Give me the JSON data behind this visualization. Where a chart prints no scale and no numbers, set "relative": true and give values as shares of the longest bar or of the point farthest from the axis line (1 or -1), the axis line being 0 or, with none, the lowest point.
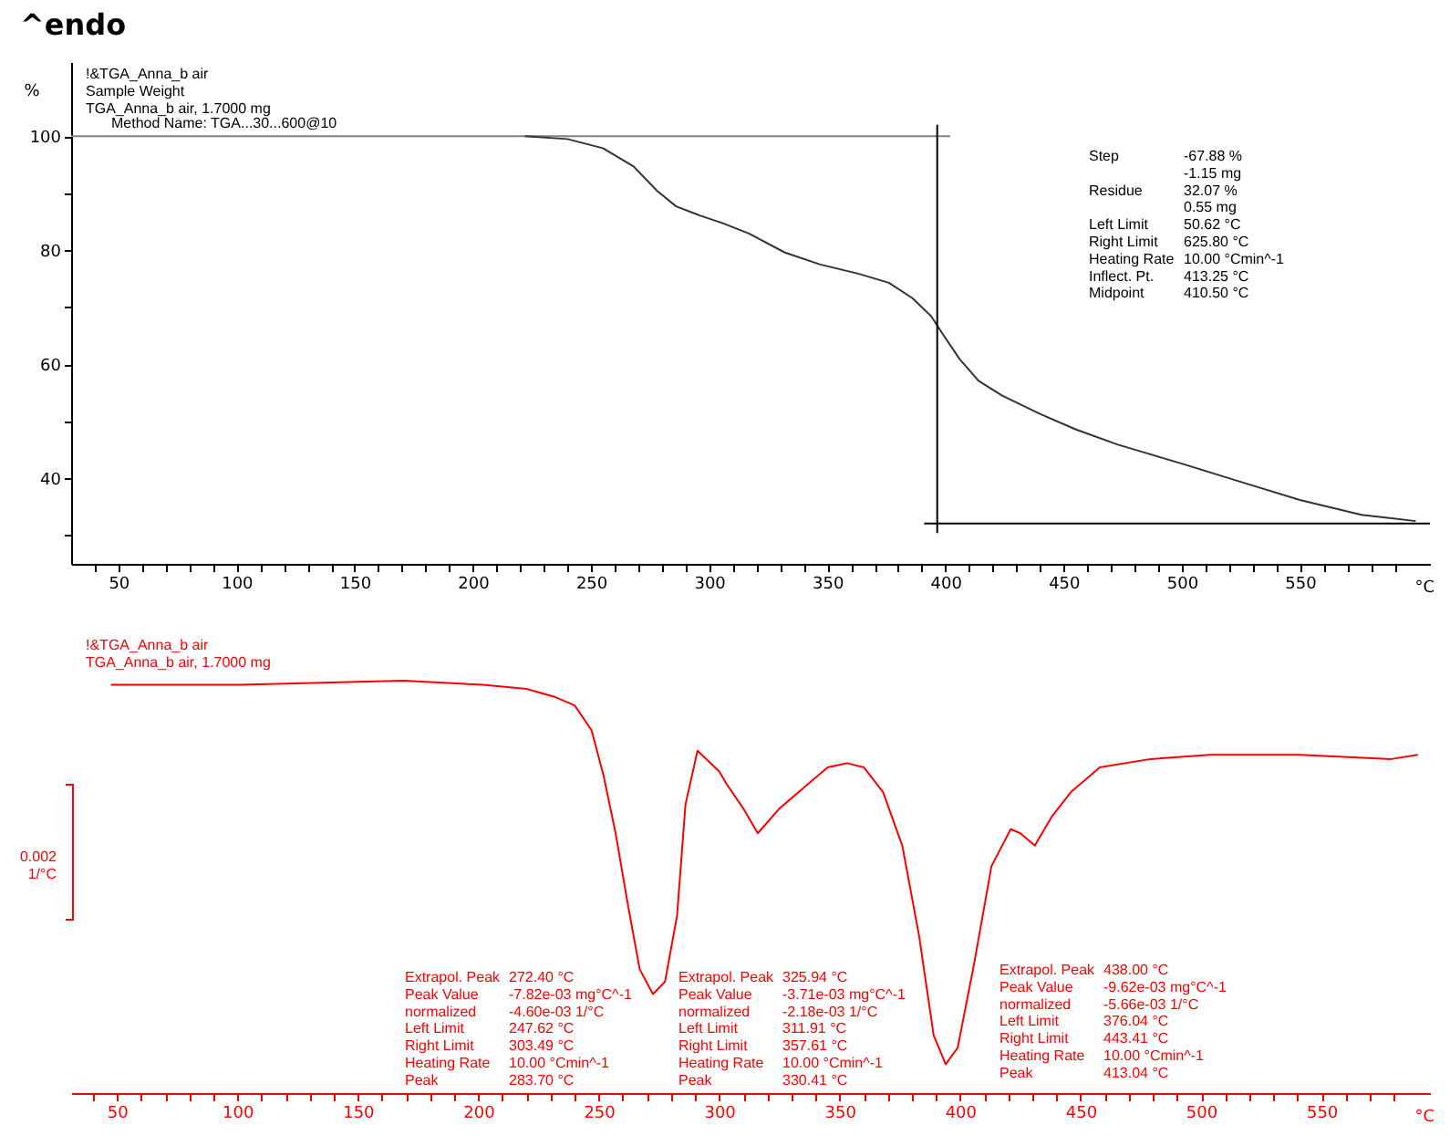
{
  "chart_data": [
    {
      "type": "line",
      "title": "^endo",
      "ylabel": "%",
      "xlabel": "°C",
      "xlim": [
        30,
        605
      ],
      "ylim": [
        25,
        113
      ],
      "xticks": [
        {
          "value": 40,
          "label": null
        },
        50,
        {
          "value": 60,
          "label": null
        },
        {
          "value": 70,
          "label": null
        },
        {
          "value": 80,
          "label": null
        },
        {
          "value": 90,
          "label": null
        },
        100,
        {
          "value": 110,
          "label": null
        },
        {
          "value": 120,
          "label": null
        },
        {
          "value": 130,
          "label": null
        },
        {
          "value": 140,
          "label": null
        },
        150,
        {
          "value": 160,
          "label": null
        },
        {
          "value": 170,
          "label": null
        },
        {
          "value": 180,
          "label": null
        },
        {
          "value": 190,
          "label": null
        },
        200,
        {
          "value": 210,
          "label": null
        },
        {
          "value": 220,
          "label": null
        },
        {
          "value": 230,
          "label": null
        },
        {
          "value": 240,
          "label": null
        },
        250,
        {
          "value": 260,
          "label": null
        },
        {
          "value": 270,
          "label": null
        },
        {
          "value": 280,
          "label": null
        },
        {
          "value": 290,
          "label": null
        },
        300,
        {
          "value": 310,
          "label": null
        },
        {
          "value": 320,
          "label": null
        },
        {
          "value": 330,
          "label": null
        },
        {
          "value": 340,
          "label": null
        },
        350,
        {
          "value": 360,
          "label": null
        },
        {
          "value": 370,
          "label": null
        },
        {
          "value": 380,
          "label": null
        },
        {
          "value": 390,
          "label": null
        },
        400,
        {
          "value": 410,
          "label": null
        },
        {
          "value": 420,
          "label": null
        },
        {
          "value": 430,
          "label": null
        },
        {
          "value": 440,
          "label": null
        },
        450,
        {
          "value": 460,
          "label": null
        },
        {
          "value": 470,
          "label": null
        },
        {
          "value": 480,
          "label": null
        },
        {
          "value": 490,
          "label": null
        },
        500,
        {
          "value": 510,
          "label": null
        },
        {
          "value": 520,
          "label": null
        },
        {
          "value": 530,
          "label": null
        },
        {
          "value": 540,
          "label": null
        },
        550,
        {
          "value": 560,
          "label": null
        },
        {
          "value": 570,
          "label": null
        },
        {
          "value": 580,
          "label": null
        },
        {
          "value": 590,
          "label": null
        }
      ],
      "yticks": [
        {
          "value": 30,
          "label": null
        },
        40,
        {
          "value": 50,
          "label": null
        },
        60,
        {
          "value": 70,
          "label": null
        },
        80,
        {
          "value": 90,
          "label": null
        },
        100
      ],
      "series": [
        {
          "color": "#808080",
          "x": [
            30,
            402
          ],
          "values": [
            100,
            100
          ]
        },
        {
          "color": "#333333",
          "x": [
            222,
            240,
            255,
            268,
            278,
            286,
            296,
            306,
            317,
            332,
            347,
            363,
            376,
            386,
            394,
            399,
            406,
            414,
            424,
            440,
            455,
            473,
            499,
            524,
            550,
            576,
            599
          ],
          "values": [
            100,
            99.5,
            97.9,
            94.7,
            90.4,
            87.7,
            86.1,
            84.7,
            82.9,
            79.6,
            77.5,
            75.9,
            74.3,
            71.6,
            68.4,
            65.2,
            60.9,
            57.1,
            54.5,
            51.3,
            48.6,
            45.9,
            42.7,
            39.5,
            36.2,
            33.6,
            32.5
          ]
        },
        {
          "color": "#000000",
          "x": [
            396.5,
            396.5
          ],
          "values": [
            102,
            30.4
          ]
        },
        {
          "color": "#000000",
          "x": [
            391,
            605
          ],
          "values": [
            32.1,
            32.1
          ]
        }
      ],
      "annotations": [
        "!&TGA_Anna_b air\nSample Weight\nTGA_Anna_b air, 1.7000 mg",
        "Method Name: TGA...30...600@10",
        "Step",
        "Residue",
        "Left Limit\nRight Limit\nHeating Rate\nInflect. Pt.\nMidpoint",
        "-67.88 %\n-1.15 mg\n32.07 %\n0.55 mg\n50.62 °C\n625.80 °C\n10.00 °Cmin^-1\n413.25 °C\n410.50 °C"
      ]
    },
    {
      "type": "line",
      "relative": true,
      "xlabel": "°C",
      "xlim": [
        31,
        595
      ],
      "xticks": [
        {
          "value": 40,
          "label": null
        },
        50,
        {
          "value": 60,
          "label": null
        },
        {
          "value": 70,
          "label": null
        },
        {
          "value": 80,
          "label": null
        },
        {
          "value": 90,
          "label": null
        },
        100,
        {
          "value": 110,
          "label": null
        },
        {
          "value": 120,
          "label": null
        },
        {
          "value": 130,
          "label": null
        },
        {
          "value": 140,
          "label": null
        },
        150,
        {
          "value": 160,
          "label": null
        },
        {
          "value": 170,
          "label": null
        },
        {
          "value": 180,
          "label": null
        },
        {
          "value": 190,
          "label": null
        },
        200,
        {
          "value": 210,
          "label": null
        },
        {
          "value": 220,
          "label": null
        },
        {
          "value": 230,
          "label": null
        },
        {
          "value": 240,
          "label": null
        },
        250,
        {
          "value": 260,
          "label": null
        },
        {
          "value": 270,
          "label": null
        },
        {
          "value": 280,
          "label": null
        },
        {
          "value": 290,
          "label": null
        },
        300,
        {
          "value": 310,
          "label": null
        },
        {
          "value": 320,
          "label": null
        },
        {
          "value": 330,
          "label": null
        },
        {
          "value": 340,
          "label": null
        },
        350,
        {
          "value": 360,
          "label": null
        },
        {
          "value": 370,
          "label": null
        },
        {
          "value": 380,
          "label": null
        },
        {
          "value": 390,
          "label": null
        },
        400,
        {
          "value": 410,
          "label": null
        },
        {
          "value": 420,
          "label": null
        },
        {
          "value": 430,
          "label": null
        },
        {
          "value": 440,
          "label": null
        },
        450,
        {
          "value": 460,
          "label": null
        },
        {
          "value": 470,
          "label": null
        },
        {
          "value": 480,
          "label": null
        },
        {
          "value": 490,
          "label": null
        },
        500,
        {
          "value": 510,
          "label": null
        },
        {
          "value": 520,
          "label": null
        },
        {
          "value": 530,
          "label": null
        },
        {
          "value": 540,
          "label": null
        },
        550,
        {
          "value": 560,
          "label": null
        },
        {
          "value": 570,
          "label": null
        },
        {
          "value": 580,
          "label": null
        }
      ],
      "series": [
        {
          "color": "#ff0000",
          "x": [
            47.5,
            101,
            169,
            202,
            220,
            232,
            240,
            247,
            252,
            257,
            262,
            267,
            272.5,
            277.5,
            282.5,
            286,
            291,
            300,
            303,
            310,
            316,
            325,
            335,
            345,
            353,
            360,
            368,
            376,
            383,
            389,
            394,
            399,
            406,
            413,
            421,
            425,
            431,
            438,
            446,
            458,
            479,
            504,
            541,
            579,
            590
          ],
          "values": [
            0.99,
            0.99,
            1,
            0.99,
            0.98,
            0.96,
            0.94,
            0.88,
            0.77,
            0.63,
            0.46,
            0.3,
            0.24,
            0.27,
            0.43,
            0.7,
            0.83,
            0.78,
            0.75,
            0.69,
            0.63,
            0.69,
            0.74,
            0.79,
            0.8,
            0.79,
            0.73,
            0.6,
            0.38,
            0.14,
            0.07,
            0.11,
            0.32,
            0.55,
            0.64,
            0.63,
            0.6,
            0.67,
            0.73,
            0.79,
            0.81,
            0.82,
            0.82,
            0.81,
            0.82
          ]
        }
      ],
      "annotations": [
        "!&TGA_Anna_b air\nTGA_Anna_b air, 1.7000 mg",
        "0.002\n1/°C",
        "Extrapol. Peak\nPeak Value\nnormalized\nLeft Limit\nRight Limit\nHeating Rate\nPeak",
        "272.40 °C\n-7.82e-03 mg°C^-1\n-4.60e-03 1/°C\n247.62 °C\n303.49 °C\n10.00 °Cmin^-1\n283.70 °C",
        "Extrapol. Peak\nPeak Value\nnormalized\nLeft Limit\nRight Limit\nHeating Rate\nPeak",
        "325.94 °C\n-3.71e-03 mg°C^-1\n-2.18e-03 1/°C\n311.91 °C\n357.61 °C\n10.00 °Cmin^-1\n330.41 °C",
        "Extrapol. Peak\nPeak Value\nnormalized\nLeft Limit\nRight Limit\nHeating Rate\nPeak",
        "438.00 °C\n-9.62e-03 mg°C^-1\n-5.66e-03 1/°C\n376.04 °C\n443.41 °C\n10.00 °Cmin^-1\n413.04 °C"
      ]
    }
  ]
}
